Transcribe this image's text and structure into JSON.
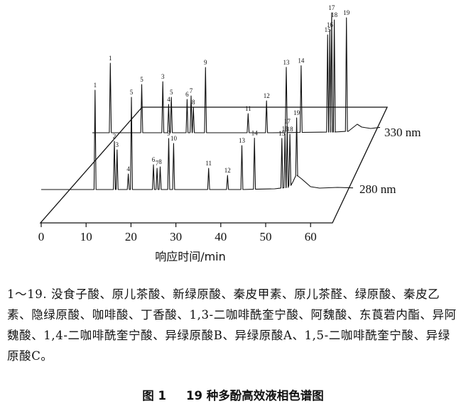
{
  "chart_data": {
    "type": "line",
    "xlabel": "响应时间/min",
    "x_ticks": [
      0,
      10,
      20,
      30,
      40,
      50,
      60
    ],
    "xlim": [
      0,
      62
    ],
    "series": [
      {
        "name": "330 nm",
        "baseline": [
          [
            0,
            0
          ],
          [
            40,
            0
          ],
          [
            54,
            1
          ],
          [
            57,
            2
          ],
          [
            59,
            12
          ],
          [
            60,
            8
          ],
          [
            62,
            6
          ],
          [
            66,
            9
          ],
          [
            71,
            7
          ]
        ],
        "peaks": [
          {
            "label": "1",
            "t": 4.0,
            "h": 98
          },
          {
            "label": "5",
            "t": 11.0,
            "h": 68
          },
          {
            "label": "3",
            "t": 15.7,
            "h": 72
          },
          {
            "label": "4",
            "t": 17.0,
            "h": 40
          },
          {
            "label": "5",
            "t": 17.6,
            "h": 50
          },
          {
            "label": "6",
            "t": 21.1,
            "h": 47
          },
          {
            "label": "7",
            "t": 22.0,
            "h": 52
          },
          {
            "label": "8",
            "t": 22.5,
            "h": 36
          },
          {
            "label": "9",
            "t": 25.2,
            "h": 92
          },
          {
            "label": "11",
            "t": 34.7,
            "h": 27
          },
          {
            "label": "12",
            "t": 38.8,
            "h": 45
          },
          {
            "label": "13",
            "t": 43.2,
            "h": 92
          },
          {
            "label": "14",
            "t": 46.5,
            "h": 94
          },
          {
            "label": "15",
            "t": 52.4,
            "h": 137
          },
          {
            "label": "16",
            "t": 52.9,
            "h": 144
          },
          {
            "label": "17",
            "t": 53.3,
            "h": 168
          },
          {
            "label": "18",
            "t": 53.9,
            "h": 158
          },
          {
            "label": "19",
            "t": 56.6,
            "h": 160
          }
        ]
      },
      {
        "name": "280 nm",
        "baseline": [
          [
            0,
            0
          ],
          [
            45,
            0
          ],
          [
            52,
            1
          ],
          [
            55,
            3
          ],
          [
            56,
            10
          ],
          [
            57,
            20
          ],
          [
            58,
            15
          ],
          [
            60,
            4
          ],
          [
            62,
            2
          ],
          [
            66,
            3
          ],
          [
            71,
            2
          ]
        ],
        "peaks": [
          {
            "label": "1",
            "t": 12.0,
            "h": 140
          },
          {
            "label": "2",
            "t": 16.3,
            "h": 68
          },
          {
            "label": "3",
            "t": 16.9,
            "h": 56
          },
          {
            "label": "4",
            "t": 19.4,
            "h": 22
          },
          {
            "label": "5",
            "t": 20.1,
            "h": 130
          },
          {
            "label": "6",
            "t": 25.0,
            "h": 35
          },
          {
            "label": "7",
            "t": 25.8,
            "h": 30
          },
          {
            "label": "8",
            "t": 26.5,
            "h": 32
          },
          {
            "label": "9",
            "t": 28.4,
            "h": 72
          },
          {
            "label": "10",
            "t": 29.5,
            "h": 65
          },
          {
            "label": "11",
            "t": 37.3,
            "h": 30
          },
          {
            "label": "12",
            "t": 41.5,
            "h": 20
          },
          {
            "label": "13",
            "t": 44.7,
            "h": 62
          },
          {
            "label": "14",
            "t": 47.5,
            "h": 72
          },
          {
            "label": "15",
            "t": 53.6,
            "h": 70
          },
          {
            "label": "16",
            "t": 54.3,
            "h": 76
          },
          {
            "label": "17",
            "t": 54.8,
            "h": 86
          },
          {
            "label": "18",
            "t": 55.4,
            "h": 72
          },
          {
            "label": "19",
            "t": 56.9,
            "h": 82
          }
        ]
      }
    ]
  },
  "caption": {
    "text": "1～19. 没食子酸、原儿茶酸、新绿原酸、秦皮甲素、原儿茶醛、绿原酸、秦皮乙素、隐绿原酸、咖啡酸、丁香酸、1,3-二咖啡酰奎宁酸、阿魏酸、东莨菪内酯、异阿魏酸、1,4-二咖啡酰奎宁酸、异绿原酸B、异绿原酸A、1,5-二咖啡酰奎宁酸、异绿原酸C。"
  },
  "figure": {
    "number": "图 1",
    "title": "19 种多酚高效液相色谱图"
  }
}
